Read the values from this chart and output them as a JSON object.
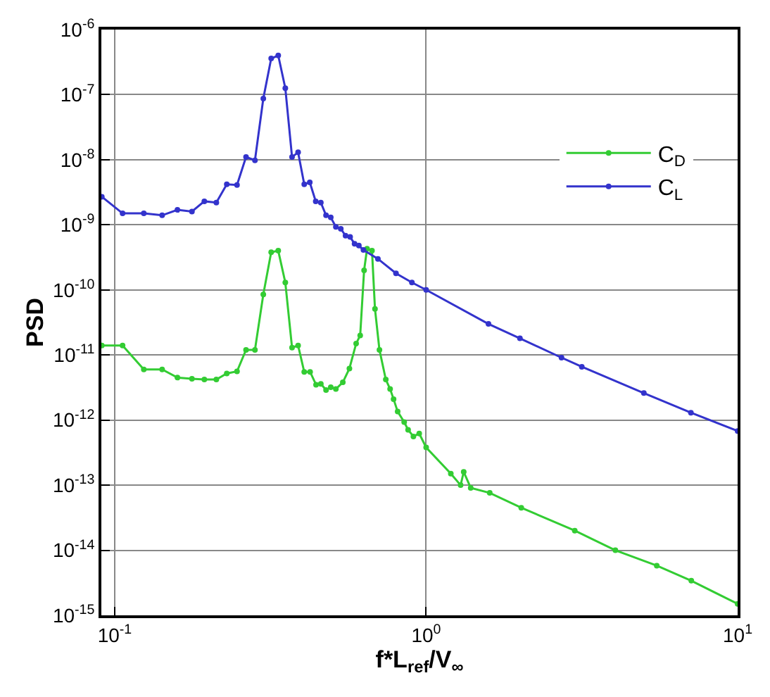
{
  "chart_data": {
    "type": "line",
    "xlabel": "f*L$_{ref}$/V$_{∞}$",
    "ylabel": "PSD",
    "log": "xy",
    "grid": true,
    "legend": "top right",
    "marker": "circle",
    "line_style": "solid",
    "xlim": [
      0.0906,
      10
    ],
    "ylim": [
      1e-15,
      1e-06
    ],
    "xticks": [
      {
        "value": 0.1,
        "label": "10$^{-1}$"
      },
      {
        "value": 1,
        "label": "10$^{0}$"
      },
      {
        "value": 10,
        "label": "10$^{1}$"
      }
    ],
    "yticks": [
      {
        "value": 1e-15,
        "label": "10$^{-15}$"
      },
      {
        "value": 1e-14,
        "label": "10$^{-14}$"
      },
      {
        "value": 1e-13,
        "label": "10$^{-13}$"
      },
      {
        "value": 1e-12,
        "label": "10$^{-12}$"
      },
      {
        "value": 1e-11,
        "label": "10$^{-11}$"
      },
      {
        "value": 1e-10,
        "label": "10$^{-10}$"
      },
      {
        "value": 1e-09,
        "label": "10$^{-9}$"
      },
      {
        "value": 1e-08,
        "label": "10$^{-8}$"
      },
      {
        "value": 1e-07,
        "label": "10$^{-7}$"
      },
      {
        "value": 1e-06,
        "label": "10$^{-6}$"
      }
    ],
    "series": [
      {
        "name": "C$_{D}$",
        "color": "#33cc33",
        "x": [
          0.0909,
          0.106,
          0.124,
          0.142,
          0.159,
          0.177,
          0.194,
          0.212,
          0.229,
          0.247,
          0.264,
          0.282,
          0.3,
          0.318,
          0.335,
          0.353,
          0.371,
          0.388,
          0.406,
          0.424,
          0.443,
          0.459,
          0.477,
          0.494,
          0.513,
          0.54,
          0.567,
          0.596,
          0.614,
          0.632,
          0.646,
          0.67,
          0.685,
          0.708,
          0.742,
          0.766,
          0.786,
          0.81,
          0.85,
          0.875,
          0.91,
          0.95,
          1.0,
          1.2,
          1.29,
          1.32,
          1.39,
          1.6,
          2.02,
          3,
          4.05,
          5.5,
          7.1,
          10
        ],
        "values": [
          1.4e-11,
          1.4e-11,
          6e-12,
          6e-12,
          4.5e-12,
          4.3e-12,
          4.2e-12,
          4.2e-12,
          5.2e-12,
          5.6e-12,
          1.2e-11,
          1.2e-11,
          8.5e-11,
          3.8e-10,
          4e-10,
          1.3e-10,
          1.3e-11,
          1.4e-11,
          5.5e-12,
          5.5e-12,
          3.5e-12,
          3.6e-12,
          2.9e-12,
          3.2e-12,
          3e-12,
          3.8e-12,
          6.2e-12,
          1.5e-11,
          2e-11,
          2e-10,
          4.3e-10,
          4e-10,
          5.1e-11,
          1.2e-11,
          4.2e-12,
          3e-12,
          2.1e-12,
          1.35e-12,
          9.3e-13,
          7.1e-13,
          5.6e-13,
          6.2e-13,
          3.8e-13,
          1.5e-13,
          1e-13,
          1.6e-13,
          9.1e-14,
          7.6e-14,
          4.5e-14,
          2e-14,
          1e-14,
          5.8e-15,
          3.4e-15,
          1.5e-15
        ]
      },
      {
        "name": "C$_{L}$",
        "color": "#3333cc",
        "x": [
          0.0909,
          0.106,
          0.124,
          0.142,
          0.159,
          0.177,
          0.194,
          0.212,
          0.229,
          0.247,
          0.264,
          0.282,
          0.3,
          0.318,
          0.335,
          0.353,
          0.371,
          0.388,
          0.406,
          0.423,
          0.442,
          0.459,
          0.477,
          0.494,
          0.513,
          0.532,
          0.551,
          0.57,
          0.589,
          0.608,
          0.629,
          0.7,
          0.8,
          0.9,
          1.0,
          1.585,
          2.0,
          2.72,
          3.16,
          5.0,
          7.08,
          10
        ],
        "values": [
          2.7e-09,
          1.5e-09,
          1.5e-09,
          1.4e-09,
          1.7e-09,
          1.6e-09,
          2.3e-09,
          2.2e-09,
          4.2e-09,
          4.1e-09,
          1.1e-08,
          9.8e-09,
          8.7e-08,
          3.6e-07,
          4e-07,
          1.26e-07,
          1.1e-08,
          1.3e-08,
          4.2e-09,
          4.5e-09,
          2.3e-09,
          2.2e-09,
          1.4e-09,
          1.3e-09,
          9.3e-10,
          8.7e-10,
          6.8e-10,
          6.5e-10,
          5.1e-10,
          4.8e-10,
          4.1e-10,
          3e-10,
          1.8e-10,
          1.3e-10,
          1e-10,
          3e-11,
          1.8e-11,
          9.1e-12,
          6.6e-12,
          2.6e-12,
          1.3e-12,
          6.8e-13
        ]
      }
    ]
  }
}
